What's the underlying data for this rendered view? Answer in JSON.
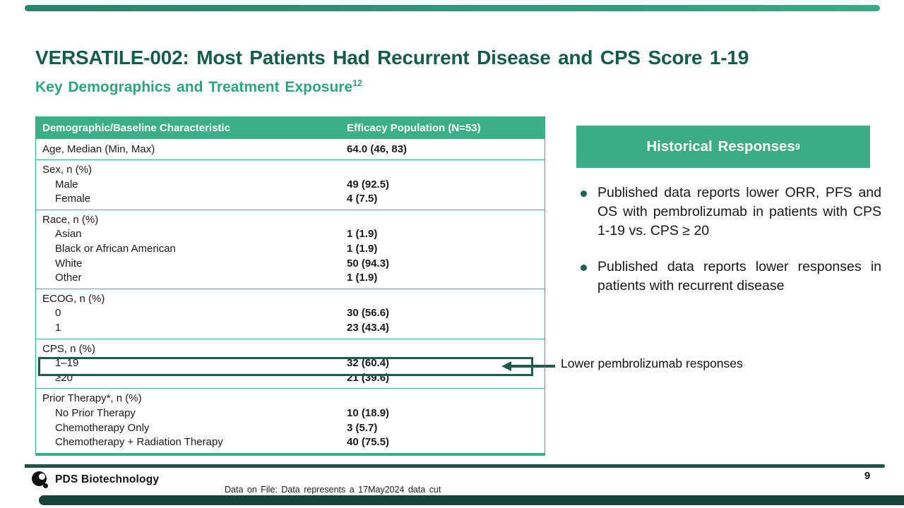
{
  "slide": {
    "title": "VERSATILE-002: Most Patients Had Recurrent Disease and CPS Score 1-19",
    "subtitle": "Key Demographics and Treatment Exposure",
    "subtitle_superscript": "12",
    "page_number": "9",
    "footer_note": "Data on File: Data represents a 17May2024 data cut",
    "logo_text": "PDS Biotechnology"
  },
  "colors": {
    "accent_green": "#3cae88",
    "title_green": "#155c4b",
    "subtitle_green": "#2ea57e",
    "callout_teal": "#1d5b4d",
    "footer_bar_teal": "#17433b"
  },
  "table": {
    "headers": [
      "Demographic/Baseline Characteristic",
      "Efficacy Population (N=53)"
    ],
    "groups": [
      {
        "label": "Age, Median (Min, Max)",
        "value": "64.0 (46, 83)",
        "items": []
      },
      {
        "label": "Sex, n (%)",
        "value": "",
        "items": [
          {
            "label": "Male",
            "value": "49 (92.5)"
          },
          {
            "label": "Female",
            "value": "4 (7.5)"
          }
        ]
      },
      {
        "label": "Race, n (%)",
        "value": "",
        "items": [
          {
            "label": "Asian",
            "value": "1 (1.9)"
          },
          {
            "label": "Black or African American",
            "value": "1 (1.9)"
          },
          {
            "label": "White",
            "value": "50 (94.3)"
          },
          {
            "label": "Other",
            "value": "1 (1.9)"
          }
        ]
      },
      {
        "label": "ECOG, n (%)",
        "value": "",
        "items": [
          {
            "label": "0",
            "value": "30 (56.6)"
          },
          {
            "label": "1",
            "value": "23 (43.4)"
          }
        ]
      },
      {
        "label": "CPS, n (%)",
        "value": "",
        "items": [
          {
            "label": "1–19",
            "value": "32 (60.4)"
          },
          {
            "label": "≥20",
            "value": "21 (39.6)"
          }
        ]
      },
      {
        "label": "Prior Therapy*, n (%)",
        "value": "",
        "items": [
          {
            "label": "No Prior Therapy",
            "value": "10 (18.9)"
          },
          {
            "label": "Chemotherapy Only",
            "value": "3 (5.7)"
          },
          {
            "label": "Chemotherapy + Radiation Therapy",
            "value": "40 (75.5)"
          }
        ]
      }
    ]
  },
  "annotation": {
    "label": "Lower pembrolizumab responses"
  },
  "panel": {
    "header": "Historical Responses",
    "header_superscript": "9",
    "bullets": [
      "Published data reports lower ORR, PFS and OS with pembrolizumab in patients with CPS 1-19 vs. CPS ≥ 20",
      "Published data reports lower responses in patients with recurrent disease"
    ]
  }
}
